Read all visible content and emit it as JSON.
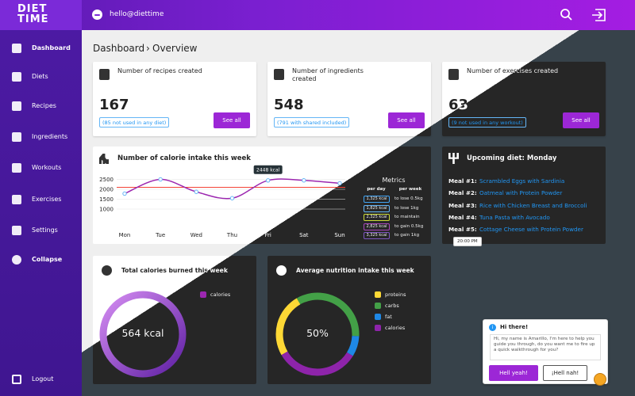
{
  "brand": [
    "DIET",
    "TIME"
  ],
  "user": "hello@diettime",
  "nav": [
    "Dashboard",
    "Diets",
    "Recipes",
    "Ingredients",
    "Workouts",
    "Exercises",
    "Settings",
    "Collapse"
  ],
  "logout": "Logout",
  "breadcrumb": [
    "Dashboard",
    "Overview"
  ],
  "stats": [
    {
      "title": "Number of recipes created",
      "value": 167,
      "note": "(85 not used in any diet)",
      "button": "See all"
    },
    {
      "title": "Number of ingredients created",
      "value": 548,
      "note": "(791 with shared included)",
      "button": "See all"
    },
    {
      "title": "Number of exercises created",
      "value": 63,
      "note": "(9 not used in any workout)",
      "button": "See all"
    }
  ],
  "calorie_chart": {
    "type": "line",
    "title": "Number of calorie intake this week",
    "categories": [
      "Mon",
      "Tue",
      "Wed",
      "Thu",
      "Fri",
      "Sat",
      "Sun"
    ],
    "values": [
      1780,
      2500,
      1870,
      1550,
      2448,
      2450,
      2300
    ],
    "target": 2100,
    "ylim": [
      400,
      2600
    ],
    "yticks": [
      1000,
      1500,
      2000,
      2500
    ],
    "tooltip": "2448 kcal",
    "color": "#9c27b0",
    "point_color": "#64b5f6",
    "target_color": "#f44336"
  },
  "metrics": {
    "title": "Metrics",
    "headers": [
      "per day",
      "per week"
    ],
    "rows": [
      {
        "per_day": "1,325 kcal",
        "per_week": "to lose 0.5kg",
        "color": "#42a5f5"
      },
      {
        "per_day": "1,825 kcal",
        "per_week": "to lose 1kg",
        "color": "#64b5f6"
      },
      {
        "per_day": "2,325 kcal",
        "per_week": "to maintain",
        "color": "#cddc39"
      },
      {
        "per_day": "2,825 kcal",
        "per_week": "to gain 0.5kg",
        "color": "#ab47bc"
      },
      {
        "per_day": "3,325 kcal",
        "per_week": "to gain 1kg",
        "color": "#7e57c2"
      }
    ]
  },
  "upcoming": {
    "title": "Upcoming diet: Monday",
    "meals": [
      {
        "label": "Meal #1:",
        "name": "Scrambled Eggs with Sardinia"
      },
      {
        "label": "Meal #2:",
        "name": "Oatmeal with Protein Powder"
      },
      {
        "label": "Meal #3:",
        "name": "Rice with Chicken Breast and Broccoli"
      },
      {
        "label": "Meal #4:",
        "name": "Tuna Pasta with Avocado"
      },
      {
        "label": "Meal #5:",
        "name": "Cottage Cheese with Protein Powder"
      }
    ],
    "tooltip": "20:00 PM"
  },
  "burned": {
    "title": "Total calories burned this week",
    "center": "564 kcal",
    "legend": [
      {
        "name": "calories",
        "color": "#9c27b0"
      }
    ]
  },
  "nutrition": {
    "title": "Average nutrition intake this week",
    "center": "50%",
    "segments": [
      {
        "name": "proteins",
        "color": "#fdd835",
        "value": 25
      },
      {
        "name": "carbs",
        "color": "#43a047",
        "value": 34
      },
      {
        "name": "fat",
        "color": "#1e88e5",
        "value": 8
      },
      {
        "name": "calories",
        "color": "#8e24aa",
        "value": 33
      }
    ]
  },
  "chat": {
    "title": "Hi there!",
    "message": "Hi, my name is Amarillo, I'm here to help you guide you through, do you want me to fire up a quick walkthrough for you?",
    "buttons": [
      "Hell yeah!",
      "¡Hell nah!"
    ]
  }
}
